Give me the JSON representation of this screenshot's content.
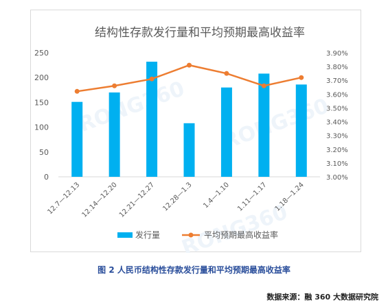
{
  "chart_data": {
    "type": "bar+line",
    "title": "结构性存款发行量和平均预期最高收益率",
    "categories": [
      "12.7—12.13",
      "12.14—12.20",
      "12.21—12.27",
      "12.28—1.3",
      "1.4—1.10",
      "1.11—1.17",
      "1.18—1.24"
    ],
    "series": [
      {
        "name": "发行量",
        "type": "bar",
        "axis": "left",
        "values": [
          151,
          170,
          232,
          108,
          180,
          208,
          186
        ]
      },
      {
        "name": "平均预期最高收益率",
        "type": "line",
        "axis": "right",
        "values": [
          3.62,
          3.66,
          3.71,
          3.81,
          3.75,
          3.66,
          3.72
        ]
      }
    ],
    "y_left": {
      "range": [
        0,
        250
      ],
      "ticks": [
        "0",
        "50",
        "100",
        "150",
        "200",
        "250"
      ]
    },
    "y_right": {
      "range": [
        3.0,
        3.9
      ],
      "ticks": [
        "3.00%",
        "3.10%",
        "3.20%",
        "3.30%",
        "3.40%",
        "3.50%",
        "3.60%",
        "3.70%",
        "3.80%",
        "3.90%"
      ]
    },
    "grid": false,
    "legend": "bottom",
    "watermark": "RONG360"
  },
  "colors": {
    "bar": "#00b0f0",
    "line": "#ed7d31",
    "title": "#595959",
    "axis_text": "#595959"
  },
  "caption": "图 2 人民币结构性存款发行量和平均预期最高收益率",
  "source": "数据来源：融 360 大数据研究院"
}
